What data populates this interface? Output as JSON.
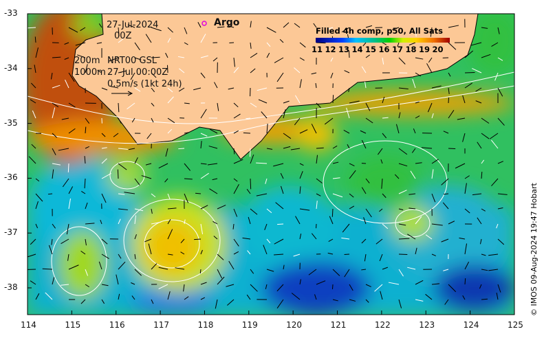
{
  "map": {
    "date": "27-Jul-2024",
    "time": "00Z",
    "argo_label": "Argo",
    "contour_200": "200m",
    "contour_1000": "1000m",
    "model": "NRT00 GSL",
    "model_time": "27-Jul 00:00Z",
    "scale_label": "0.5m/s (1kt 24h)",
    "credit": "© IMOS 09-Aug-2024 19:47 Hobart",
    "colors": {
      "land": "#fcc896",
      "argo": "#e000e0"
    }
  },
  "colorbar": {
    "title": "Filled 4h comp, p50, All Sats",
    "labels": [
      "11",
      "12",
      "13",
      "14",
      "15",
      "16",
      "17",
      "18",
      "19",
      "20"
    ],
    "range": [
      10.5,
      21
    ]
  },
  "axes": {
    "lon_ticks": [
      "114",
      "115",
      "116",
      "117",
      "118",
      "119",
      "120",
      "121",
      "122",
      "123",
      "124",
      "125"
    ],
    "lat_ticks": [
      "-33",
      "-34",
      "-35",
      "-36",
      "-37",
      "-38"
    ]
  }
}
